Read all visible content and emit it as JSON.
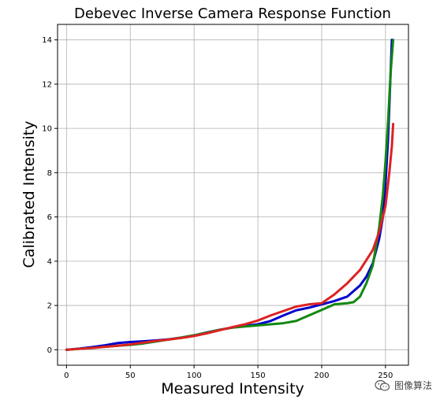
{
  "chart_data": {
    "type": "line",
    "title": "Debevec Inverse Camera Response Function",
    "xlabel": "Measured Intensity",
    "ylabel": "Calibrated Intensity",
    "xlim": [
      -7,
      268
    ],
    "ylim": [
      -0.7,
      14.7
    ],
    "xticks": [
      0,
      50,
      100,
      150,
      200,
      250
    ],
    "yticks": [
      0,
      2,
      4,
      6,
      8,
      10,
      12,
      14
    ],
    "grid": true,
    "series": [
      {
        "color": "#0000cc",
        "x": [
          0,
          10,
          20,
          30,
          40,
          50,
          60,
          70,
          80,
          90,
          100,
          110,
          120,
          130,
          140,
          150,
          160,
          170,
          180,
          190,
          200,
          210,
          220,
          230,
          235,
          240,
          245,
          248,
          250,
          252,
          254,
          255
        ],
        "y": [
          0.0,
          0.05,
          0.12,
          0.2,
          0.3,
          0.35,
          0.38,
          0.42,
          0.47,
          0.55,
          0.65,
          0.78,
          0.9,
          1.0,
          1.08,
          1.15,
          1.3,
          1.55,
          1.78,
          1.9,
          2.05,
          2.2,
          2.4,
          2.9,
          3.3,
          3.9,
          5.0,
          6.0,
          7.5,
          9.5,
          12.5,
          14.0
        ]
      },
      {
        "color": "#118811",
        "x": [
          0,
          10,
          20,
          30,
          40,
          50,
          60,
          70,
          80,
          90,
          100,
          110,
          120,
          130,
          140,
          150,
          160,
          170,
          180,
          190,
          200,
          210,
          220,
          225,
          230,
          235,
          240,
          245,
          248,
          250,
          252,
          254,
          256
        ],
        "y": [
          0.0,
          0.04,
          0.08,
          0.13,
          0.18,
          0.22,
          0.28,
          0.37,
          0.46,
          0.55,
          0.65,
          0.77,
          0.9,
          1.0,
          1.05,
          1.1,
          1.15,
          1.2,
          1.3,
          1.55,
          1.8,
          2.05,
          2.1,
          2.15,
          2.4,
          3.0,
          3.8,
          5.5,
          7.0,
          8.5,
          10.3,
          12.5,
          14.0
        ]
      },
      {
        "color": "#dd2222",
        "x": [
          0,
          10,
          20,
          30,
          40,
          50,
          60,
          70,
          80,
          90,
          100,
          110,
          120,
          130,
          140,
          150,
          160,
          170,
          180,
          190,
          200,
          210,
          220,
          230,
          240,
          245,
          250,
          253,
          255,
          256
        ],
        "y": [
          0.0,
          0.04,
          0.08,
          0.13,
          0.18,
          0.24,
          0.32,
          0.4,
          0.46,
          0.53,
          0.62,
          0.74,
          0.88,
          1.02,
          1.15,
          1.32,
          1.55,
          1.75,
          1.95,
          2.05,
          2.1,
          2.5,
          3.0,
          3.6,
          4.5,
          5.3,
          6.5,
          8.0,
          9.2,
          10.2
        ]
      }
    ]
  },
  "watermark": {
    "text": "图像算法",
    "icon": "wechat-icon"
  }
}
